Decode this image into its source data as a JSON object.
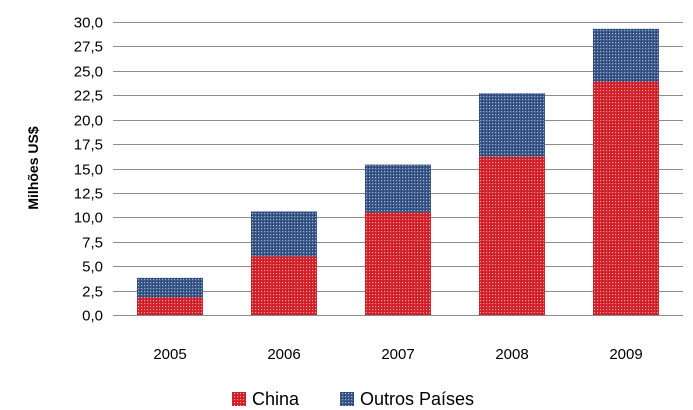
{
  "chart_data": {
    "type": "bar",
    "stacked": true,
    "categories": [
      "2005",
      "2006",
      "2007",
      "2008",
      "2009"
    ],
    "series": [
      {
        "name": "China",
        "color": "#d9262e",
        "values": [
          1.8,
          6.0,
          10.5,
          16.2,
          23.9
        ]
      },
      {
        "name": "Outros Países",
        "color": "#3c5a8a",
        "values": [
          2.0,
          4.6,
          4.9,
          6.5,
          5.4
        ]
      }
    ],
    "title": "",
    "xlabel": "",
    "ylabel": "Milhões US$",
    "ylim": [
      0,
      30
    ],
    "yticks": [
      "0,0",
      "2,5",
      "5,0",
      "7,5",
      "10,0",
      "12,5",
      "15,0",
      "17,5",
      "20,0",
      "22,5",
      "25,0",
      "27,5",
      "30,0"
    ],
    "grid": true,
    "legend_position": "bottom"
  }
}
